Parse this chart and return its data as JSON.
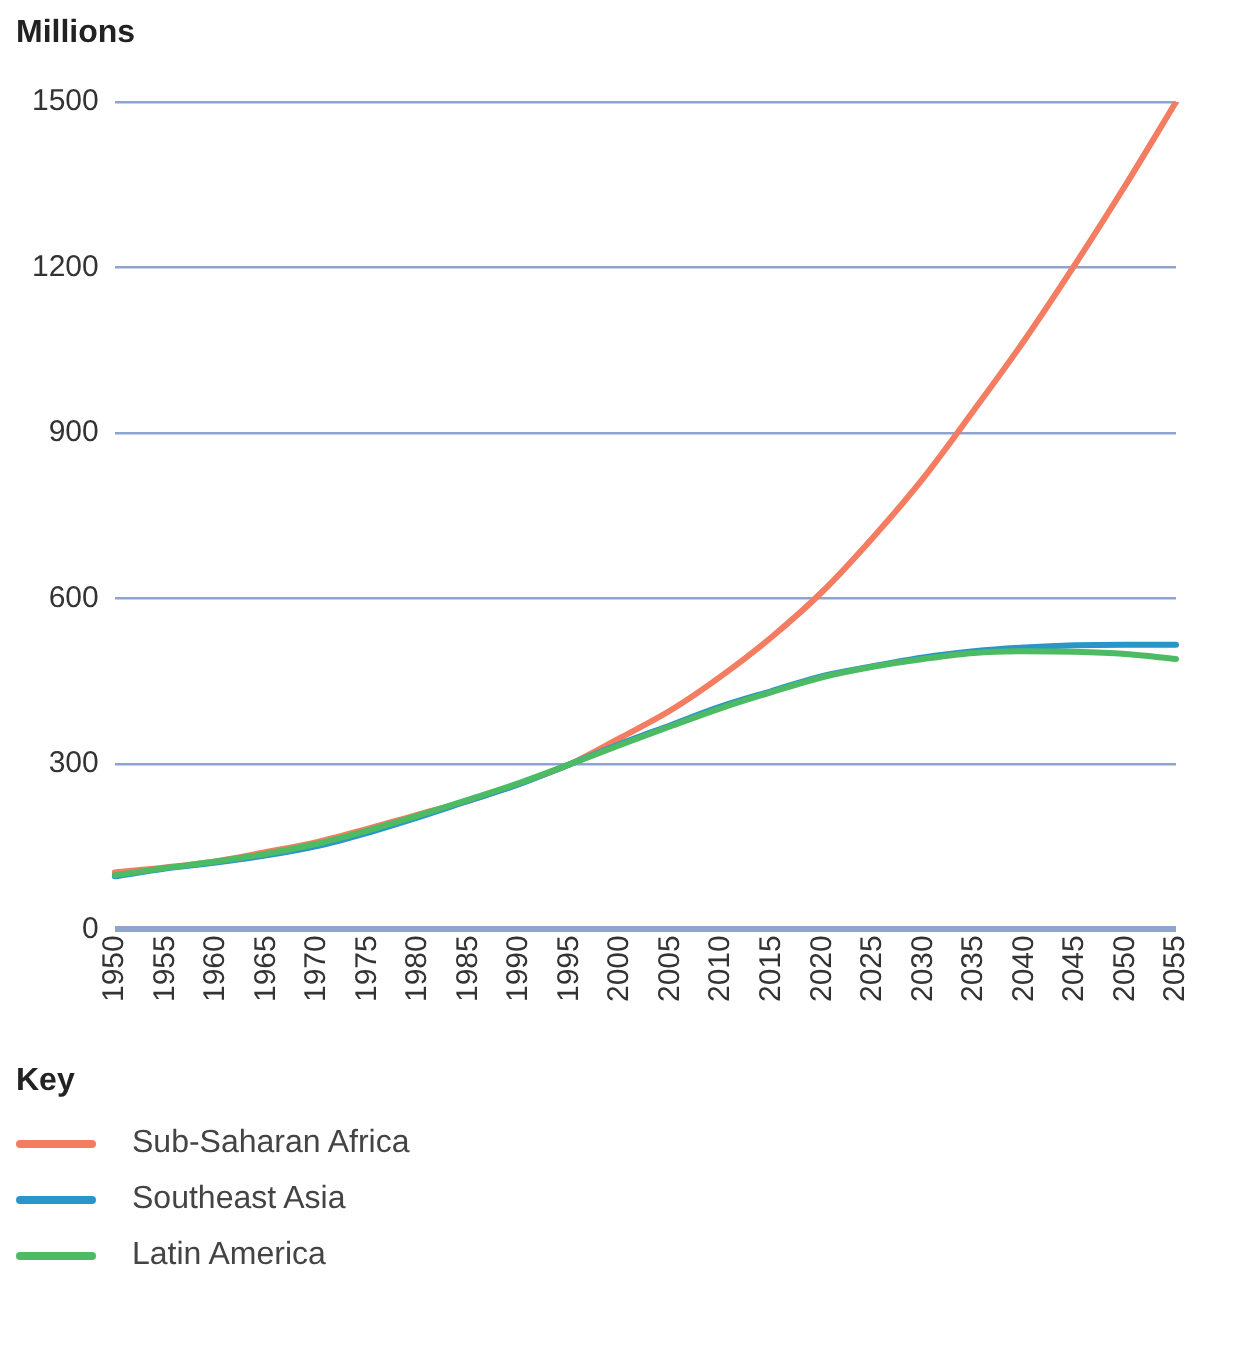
{
  "chart_data": {
    "type": "line",
    "ylabel": "Millions",
    "legend_title": "Key",
    "legend": "bottom",
    "grid": "y",
    "marker": "none",
    "line_style": "solid",
    "categories": [
      "1950",
      "1955",
      "1960",
      "1965",
      "1970",
      "1975",
      "1980",
      "1985",
      "1990",
      "1995",
      "2000",
      "2005",
      "2010",
      "2015",
      "2020",
      "2025",
      "2030",
      "2035",
      "2040",
      "2045",
      "2050",
      "2055"
    ],
    "ylim": [
      0,
      1500
    ],
    "yticks": [
      0,
      300,
      600,
      900,
      1200,
      1500
    ],
    "series": [
      {
        "name": "Sub-Saharan Africa",
        "color": "#f47c60",
        "values": [
          103,
          112,
          123,
          140,
          158,
          182,
          208,
          233,
          264,
          299,
          347,
          397,
          459,
          530,
          612,
          710,
          818,
          941,
          1068,
          1205,
          1349,
          1500
        ]
      },
      {
        "name": "Southeast Asia",
        "color": "#2a95c8",
        "values": [
          96,
          110,
          121,
          134,
          151,
          175,
          203,
          233,
          263,
          299,
          336,
          370,
          404,
          432,
          459,
          477,
          493,
          504,
          511,
          515,
          516,
          516
        ]
      },
      {
        "name": "Latin America",
        "color": "#4dbb63",
        "values": [
          98,
          111,
          123,
          137,
          155,
          179,
          206,
          235,
          265,
          299,
          334,
          368,
          401,
          430,
          457,
          476,
          490,
          501,
          504,
          503,
          499,
          490
        ]
      }
    ]
  }
}
